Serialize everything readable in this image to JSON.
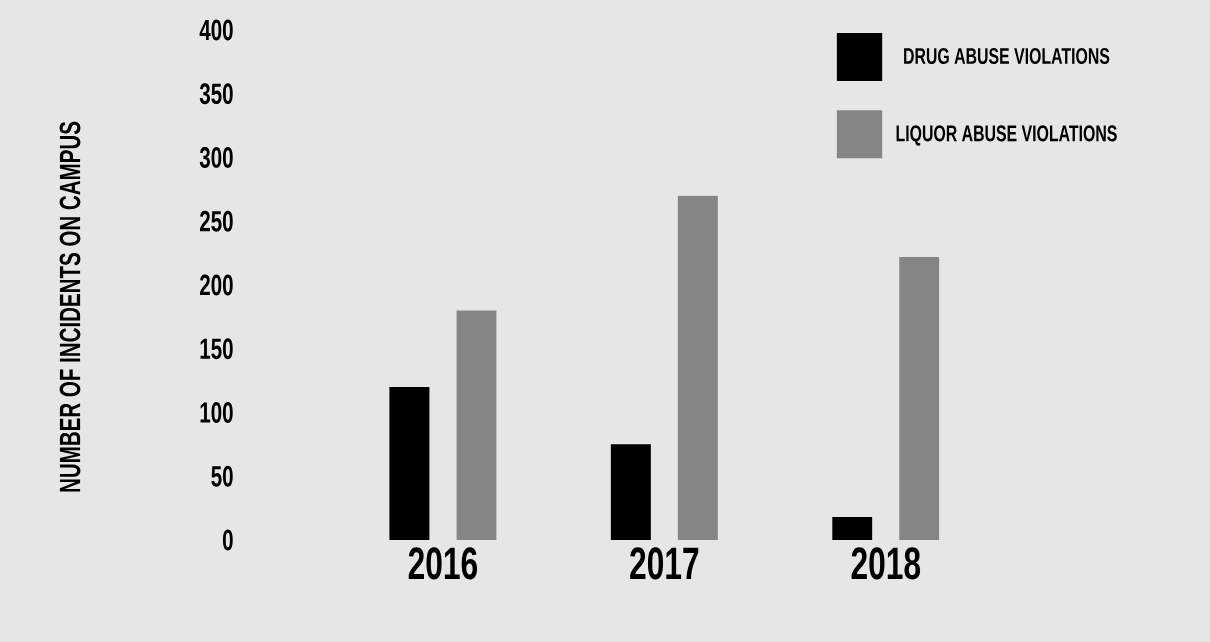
{
  "chart_data": {
    "type": "bar",
    "ylabel": "NUMBER OF INCIDENTS ON CAMPUS",
    "categories": [
      "2016",
      "2017",
      "2018"
    ],
    "series": [
      {
        "name": "DRUG ABUSE VIOLATIONS",
        "color": "#000000",
        "values": [
          120,
          75,
          18
        ]
      },
      {
        "name": "LIQUOR ABUSE VIOLATIONS",
        "color": "#858585",
        "values": [
          180,
          270,
          222
        ]
      }
    ],
    "ylim": [
      0,
      400
    ],
    "yticks": [
      0,
      50,
      100,
      150,
      200,
      250,
      300,
      350,
      400
    ],
    "legend": "top right",
    "grid": false
  }
}
